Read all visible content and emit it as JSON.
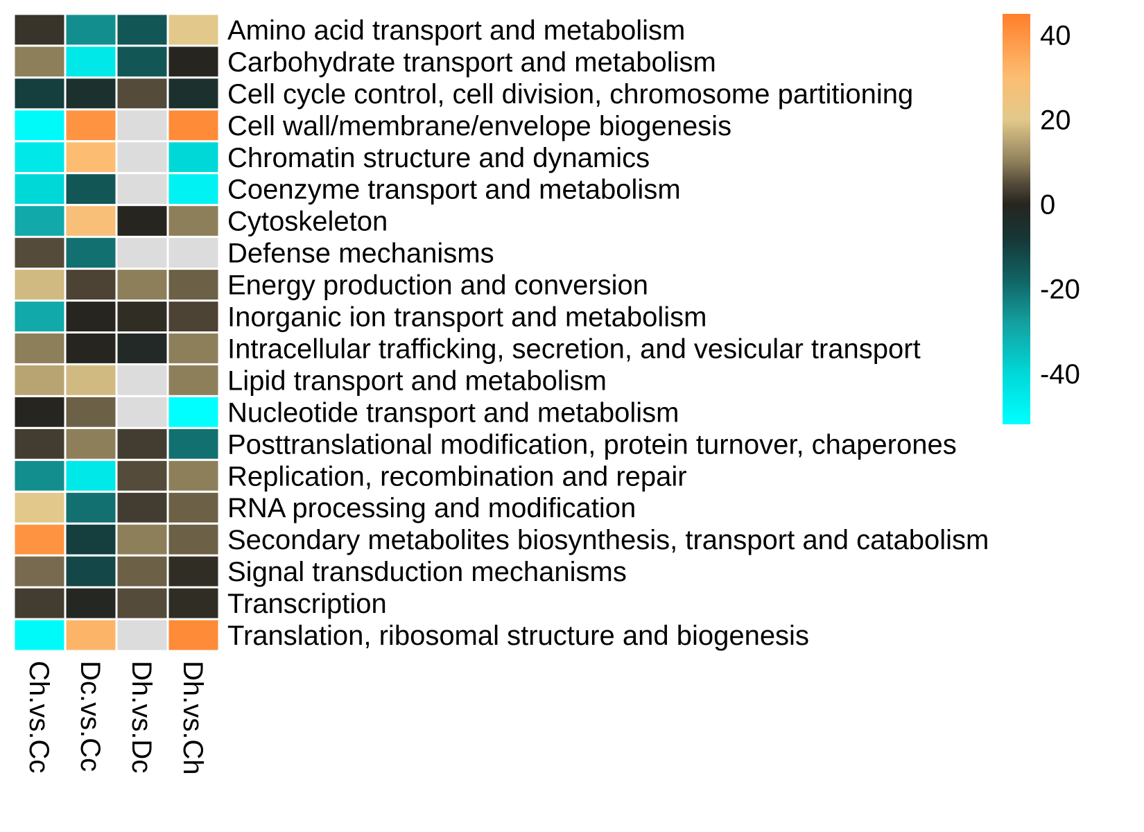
{
  "chart_data": {
    "type": "heatmap",
    "title": "",
    "columns": [
      "Ch.vs.Cc",
      "Dc.vs.Cc",
      "Dh.vs.Dc",
      "Dh.vs.Ch"
    ],
    "rows": [
      "Amino acid transport and metabolism",
      "Carbohydrate transport and metabolism",
      "Cell cycle control, cell division, chromosome partitioning",
      "Cell wall/membrane/envelope biogenesis",
      "Chromatin structure and dynamics",
      "Coenzyme transport and metabolism",
      "Cytoskeleton",
      "Defense mechanisms",
      "Energy production and conversion",
      "Inorganic ion transport and metabolism",
      "Intracellular trafficking, secretion, and vesicular transport",
      "Lipid transport and metabolism",
      "Nucleotide transport and metabolism",
      "Posttranslational modification, protein turnover, chaperones",
      "Replication, recombination and repair",
      "RNA processing and modification",
      "Secondary metabolites biosynthesis, transport and catabolism",
      "Signal transduction mechanisms",
      "Transcription",
      "Translation, ribosomal structure and biogenesis"
    ],
    "values": [
      [
        2,
        -25,
        -15,
        20
      ],
      [
        10,
        -45,
        -15,
        0
      ],
      [
        -10,
        -5,
        5,
        -5
      ],
      [
        -50,
        40,
        null,
        42
      ],
      [
        -45,
        30,
        null,
        -40
      ],
      [
        -40,
        -15,
        null,
        -48
      ],
      [
        -30,
        28,
        0,
        10
      ],
      [
        5,
        -20,
        null,
        null
      ],
      [
        18,
        4,
        10,
        7
      ],
      [
        -30,
        0,
        1,
        4
      ],
      [
        10,
        0,
        -2,
        10
      ],
      [
        15,
        18,
        null,
        10
      ],
      [
        0,
        7,
        null,
        -52
      ],
      [
        3,
        10,
        3,
        -20
      ],
      [
        -25,
        -45,
        5,
        10
      ],
      [
        20,
        -20,
        3,
        7
      ],
      [
        40,
        -10,
        10,
        7
      ],
      [
        8,
        -12,
        7,
        1
      ],
      [
        3,
        -1,
        5,
        1
      ],
      [
        -50,
        32,
        null,
        42
      ]
    ],
    "missing_color": "#dcdcdc",
    "colorbar": {
      "ticks": [
        40,
        20,
        0,
        -20,
        -40
      ],
      "range": [
        -52,
        45
      ],
      "colors": [
        {
          "v": -52,
          "c": "#00ffff"
        },
        {
          "v": -40,
          "c": "#00d8d8"
        },
        {
          "v": -28,
          "c": "#14a0a0"
        },
        {
          "v": -18,
          "c": "#116464"
        },
        {
          "v": -8,
          "c": "#163636"
        },
        {
          "v": 0,
          "c": "#272520"
        },
        {
          "v": 5,
          "c": "#554b3a"
        },
        {
          "v": 10,
          "c": "#8e7f5b"
        },
        {
          "v": 20,
          "c": "#e2c98b"
        },
        {
          "v": 30,
          "c": "#fcbd72"
        },
        {
          "v": 45,
          "c": "#ff7f2a"
        }
      ]
    }
  }
}
